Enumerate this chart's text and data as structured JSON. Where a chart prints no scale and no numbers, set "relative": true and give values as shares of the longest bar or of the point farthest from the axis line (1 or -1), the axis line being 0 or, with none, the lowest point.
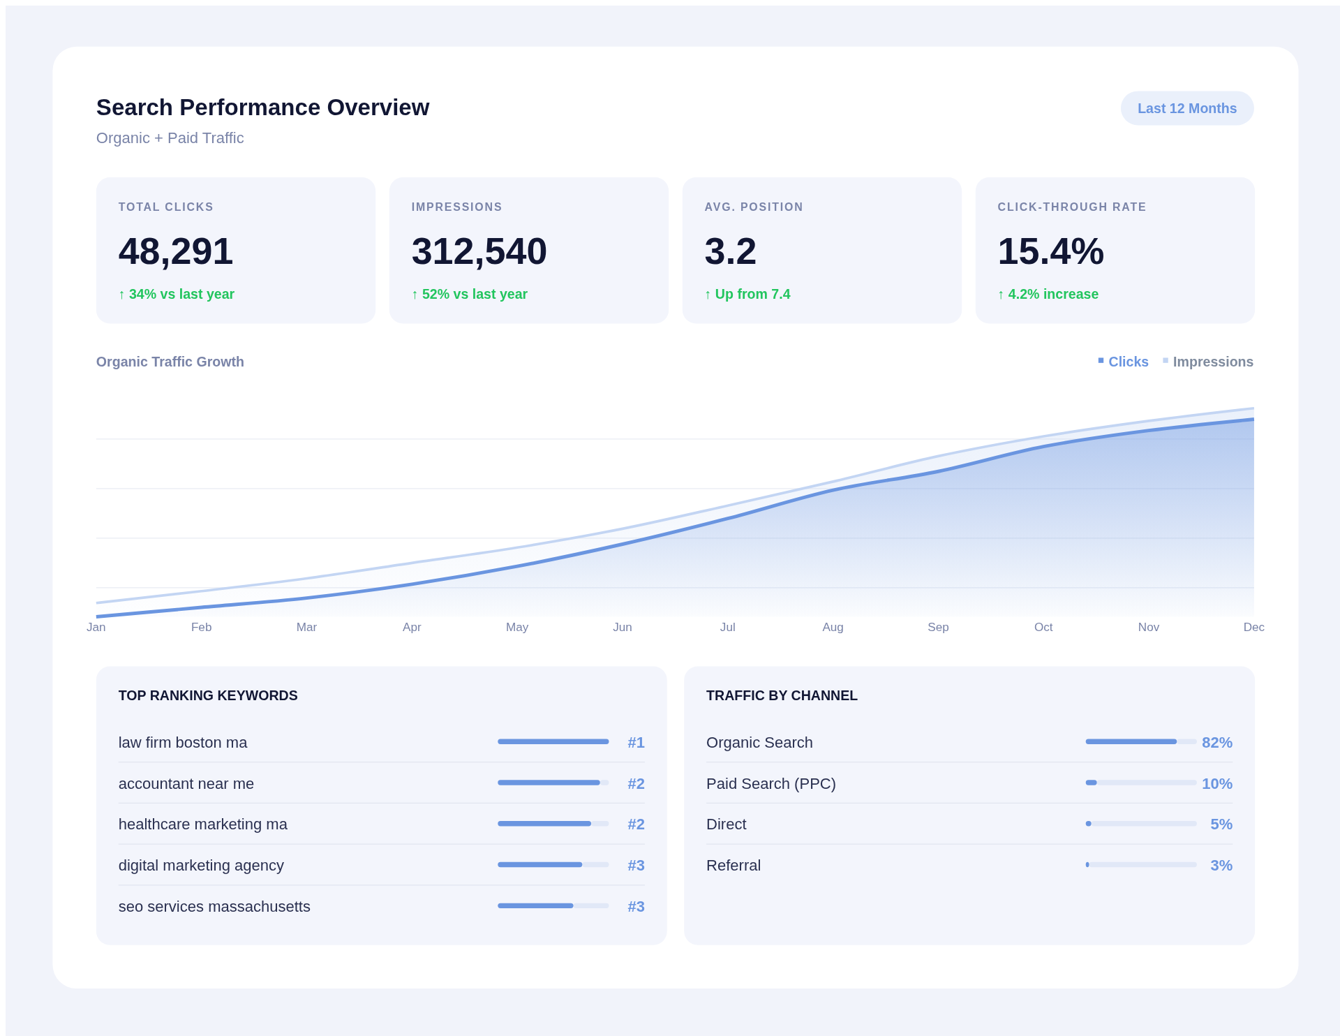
{
  "chart_data": [
    {
      "type": "other",
      "title": "Search Performance Overview",
      "subtitle": "Organic + Paid Traffic",
      "annotations": [
        "Last 12 Months",
        "TOTAL CLICKS",
        "48,291",
        "↑ 34% vs last year",
        "IMPRESSIONS",
        "312,540",
        "↑ 52% vs last year",
        "AVG. POSITION",
        "3.2",
        "↑ Up from 7.4",
        "CLICK-THROUGH RATE",
        "15.4%",
        "↑ 4.2% increase"
      ]
    },
    {
      "type": "area",
      "title": "Organic Traffic Growth",
      "categories": [
        "Jan",
        "Feb",
        "Mar",
        "Apr",
        "May",
        "Jun",
        "Jul",
        "Aug",
        "Sep",
        "Oct",
        "Nov",
        "Dec"
      ],
      "relative": true,
      "grid": true,
      "legend": "top right",
      "series": [
        {
          "name": "Clicks",
          "color": "#6a95e0",
          "values": [
            0,
            0.045,
            0.09,
            0.156,
            0.242,
            0.348,
            0.471,
            0.607,
            0.697,
            0.816,
            0.893,
            0.947
          ]
        },
        {
          "name": "Impressions",
          "color": "#c3d5f3",
          "values": [
            0.066,
            0.123,
            0.184,
            0.258,
            0.332,
            0.422,
            0.533,
            0.648,
            0.77,
            0.865,
            0.939,
            1.0
          ]
        }
      ]
    },
    {
      "type": "bar",
      "orientation": "horizontal",
      "title": "TOP RANKING KEYWORDS",
      "relative": true,
      "categories": [
        "law firm boston ma",
        "accountant near me",
        "healthcare marketing ma",
        "digital marketing agency",
        "seo services massachusetts"
      ],
      "values": [
        1,
        0.92,
        0.84,
        0.76,
        0.68
      ],
      "annotations": [
        "#1",
        "#2",
        "#2",
        "#3",
        "#3"
      ],
      "color": "#6a95e0"
    },
    {
      "type": "bar",
      "orientation": "horizontal",
      "title": "TRAFFIC BY CHANNEL",
      "categories": [
        "Organic Search",
        "Paid Search (PPC)",
        "Direct",
        "Referral"
      ],
      "values": [
        82,
        10,
        5,
        3
      ],
      "value_labels": [
        "82%",
        "10%",
        "5%",
        "3%"
      ],
      "color": "#6a95e0"
    }
  ]
}
